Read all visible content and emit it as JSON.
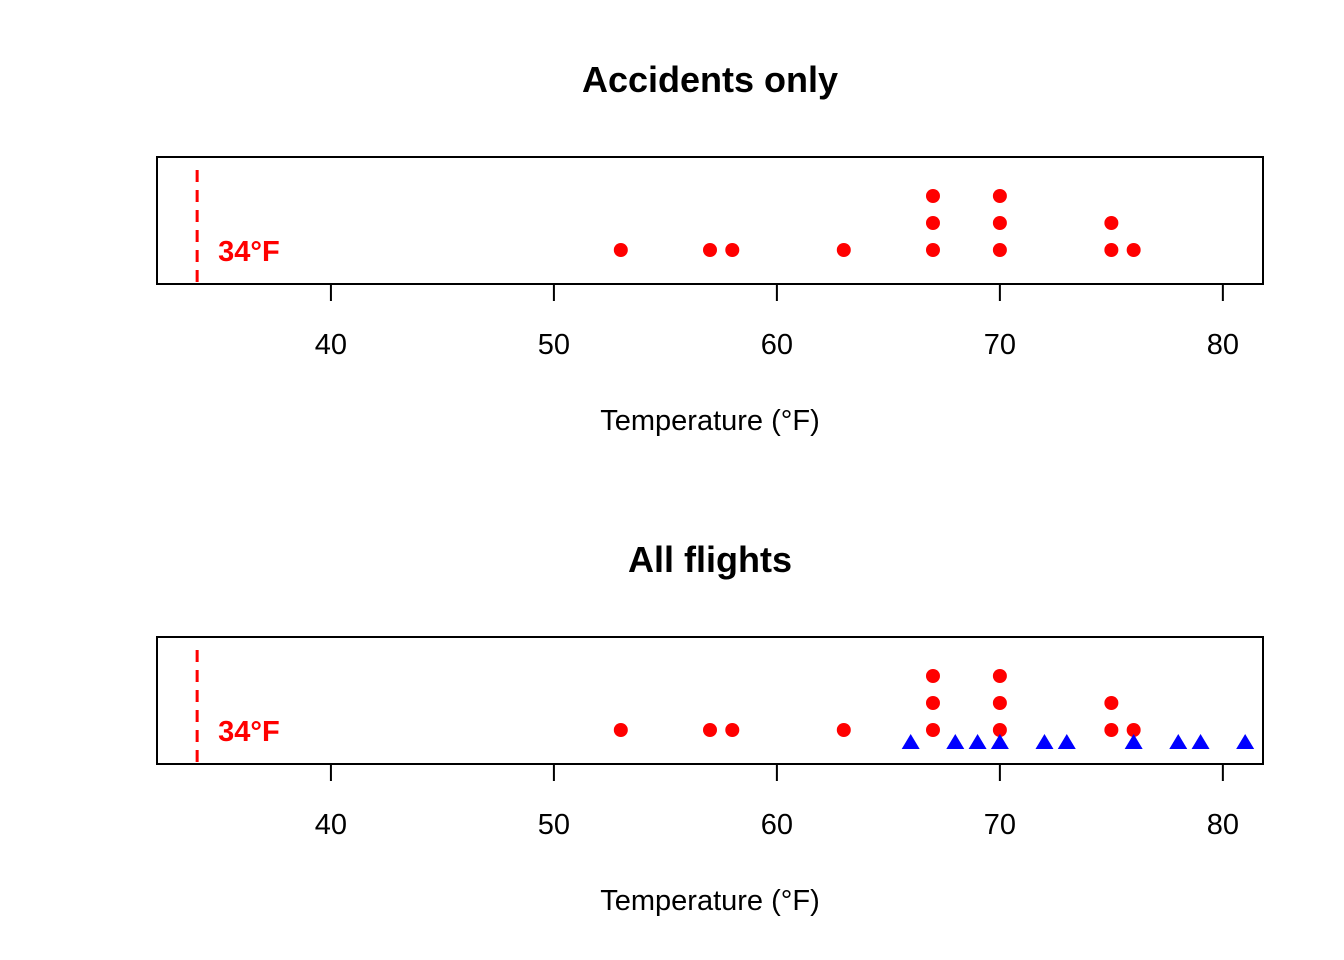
{
  "colors": {
    "accident": "#FF0000",
    "no_accident": "#0000FF",
    "reference": "#FF0000"
  },
  "chart_data": [
    {
      "type": "scatter",
      "title": "Accidents only",
      "xlabel": "Temperature (°F)",
      "ylabel": "",
      "xlim": [
        32.2,
        81.8
      ],
      "xticks": [
        40,
        50,
        60,
        70,
        80
      ],
      "reference_line": {
        "x": 34,
        "label": "34°F",
        "style": "dashed"
      },
      "series": [
        {
          "marker": "circle",
          "color": "#FF0000",
          "x": [
            53,
            57,
            58,
            63,
            67,
            67,
            67,
            70,
            70,
            70,
            75,
            75,
            76
          ],
          "stack": [
            1,
            1,
            1,
            1,
            1,
            2,
            3,
            1,
            2,
            3,
            1,
            2,
            1
          ]
        }
      ]
    },
    {
      "type": "scatter",
      "title": "All flights",
      "xlabel": "Temperature (°F)",
      "ylabel": "",
      "xlim": [
        32.2,
        81.8
      ],
      "xticks": [
        40,
        50,
        60,
        70,
        80
      ],
      "reference_line": {
        "x": 34,
        "label": "34°F",
        "style": "dashed"
      },
      "series": [
        {
          "marker": "circle",
          "color": "#FF0000",
          "x": [
            53,
            57,
            58,
            63,
            67,
            67,
            67,
            70,
            70,
            70,
            75,
            75,
            76
          ],
          "stack": [
            1,
            1,
            1,
            1,
            1,
            2,
            3,
            1,
            2,
            3,
            1,
            2,
            1
          ]
        },
        {
          "marker": "triangle",
          "color": "#0000FF",
          "x": [
            66,
            68,
            69,
            70,
            72,
            73,
            76,
            78,
            79,
            81
          ],
          "stack": [
            0,
            0,
            0,
            0,
            0,
            0,
            0,
            0,
            0,
            0
          ]
        }
      ]
    }
  ]
}
